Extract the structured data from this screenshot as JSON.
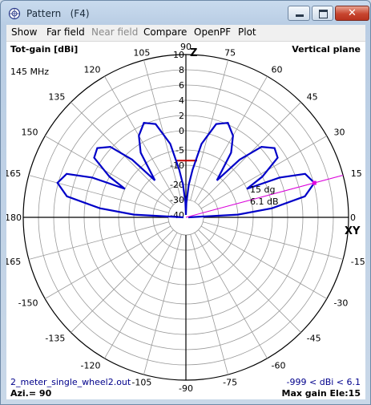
{
  "window": {
    "title": "Pattern   (F4)",
    "close_glyph": "✕"
  },
  "menu": [
    "Show",
    "Far field",
    "Near field",
    "Compare",
    "OpenPF",
    "Plot"
  ],
  "menu_disabled": [
    "Near field"
  ],
  "header": {
    "gain_label": "Tot-gain [dBi]",
    "plane_label": "Vertical plane",
    "frequency": "145 MHz"
  },
  "footer": {
    "filename": "2_meter_single_wheel2.out",
    "azimuth": "Azi.= 90",
    "gain_range": "-999 < dBi < 6.1",
    "max_gain": "Max gain Ele:15"
  },
  "axis": {
    "top_label": "Z",
    "right_label": "XY"
  },
  "marker": {
    "angle_text": "15 dg",
    "gain_text": "6.1 dB"
  },
  "colors": {
    "pattern": "#0000c8",
    "marker": "#e000e0",
    "grid": "#999999",
    "reference_line": "#c00000",
    "filename_text": "#00008b",
    "gain_range_text": "#00008b"
  },
  "chart_data": {
    "type": "polar",
    "plane": "vertical",
    "angle_unit": "deg",
    "angle_tick_labels": [
      "0",
      "15",
      "30",
      "45",
      "60",
      "75",
      "90",
      "105",
      "120",
      "135",
      "150",
      "165",
      "180",
      "-165",
      "-150",
      "-135",
      "-120",
      "-105",
      "-90",
      "-75",
      "-60",
      "-45",
      "-30",
      "-15"
    ],
    "radial_tick_labels": [
      "10",
      "8",
      "6",
      "4",
      "2",
      "0",
      "-5",
      "-10",
      "-20",
      "-30",
      "-40"
    ],
    "radial_range_dbi": [
      -40,
      10
    ],
    "max_gain_dbi": 6.1,
    "max_gain_elevation_deg": 15,
    "reference_level_dbi": -8.5,
    "series": [
      {
        "values": [
          [
            0,
            -40
          ],
          [
            3,
            -10
          ],
          [
            6,
            0
          ],
          [
            10,
            4.5
          ],
          [
            15,
            6.1
          ],
          [
            20,
            5.3
          ],
          [
            23,
            2
          ],
          [
            25,
            -5
          ],
          [
            28,
            0
          ],
          [
            33,
            3
          ],
          [
            38,
            3.4
          ],
          [
            43,
            2.2
          ],
          [
            47,
            -2
          ],
          [
            50,
            -12
          ],
          [
            55,
            -2
          ],
          [
            60,
            1
          ],
          [
            66,
            2.2
          ],
          [
            72,
            1.5
          ],
          [
            78,
            -3
          ],
          [
            82,
            -12
          ],
          [
            85,
            -20
          ],
          [
            88,
            -32
          ],
          [
            90,
            -40
          ],
          [
            92,
            -32
          ],
          [
            95,
            -20
          ],
          [
            98,
            -12
          ],
          [
            102,
            -3
          ],
          [
            108,
            1.5
          ],
          [
            114,
            2.2
          ],
          [
            120,
            1
          ],
          [
            125,
            -2
          ],
          [
            130,
            -12
          ],
          [
            133,
            -2
          ],
          [
            137,
            2.2
          ],
          [
            142,
            3.4
          ],
          [
            147,
            3
          ],
          [
            152,
            0
          ],
          [
            155,
            -5
          ],
          [
            157,
            2
          ],
          [
            160,
            5.3
          ],
          [
            165,
            6.1
          ],
          [
            170,
            4.5
          ],
          [
            174,
            0
          ],
          [
            177,
            -10
          ],
          [
            180,
            -40
          ]
        ]
      }
    ]
  }
}
